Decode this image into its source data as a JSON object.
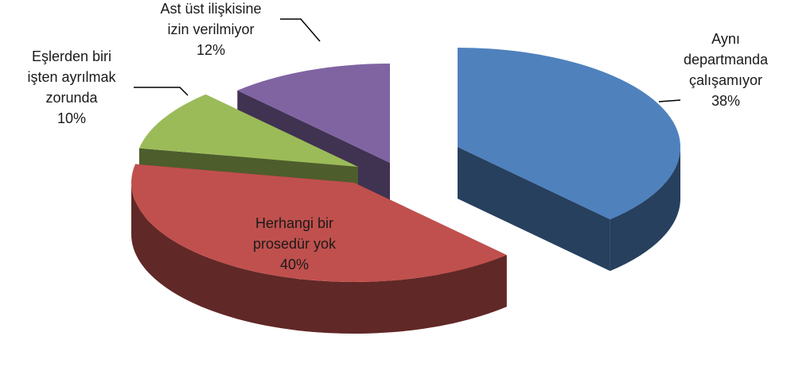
{
  "chart_data": {
    "type": "pie",
    "categories": [
      "Aynı\ndepartmanda\nçalışamıyor",
      "Herhangi bir\nprosedür yok",
      "Eşlerden biri\nişten ayrılmak\nzorunda",
      "Ast üst ilişkisine\nizin verilmiyor"
    ],
    "values": [
      38,
      40,
      10,
      12
    ],
    "value_labels": [
      "38%",
      "40%",
      "10%",
      "12%"
    ],
    "colors": [
      "#4f81bd",
      "#c0504d",
      "#9bbb59",
      "#8064a2"
    ]
  }
}
